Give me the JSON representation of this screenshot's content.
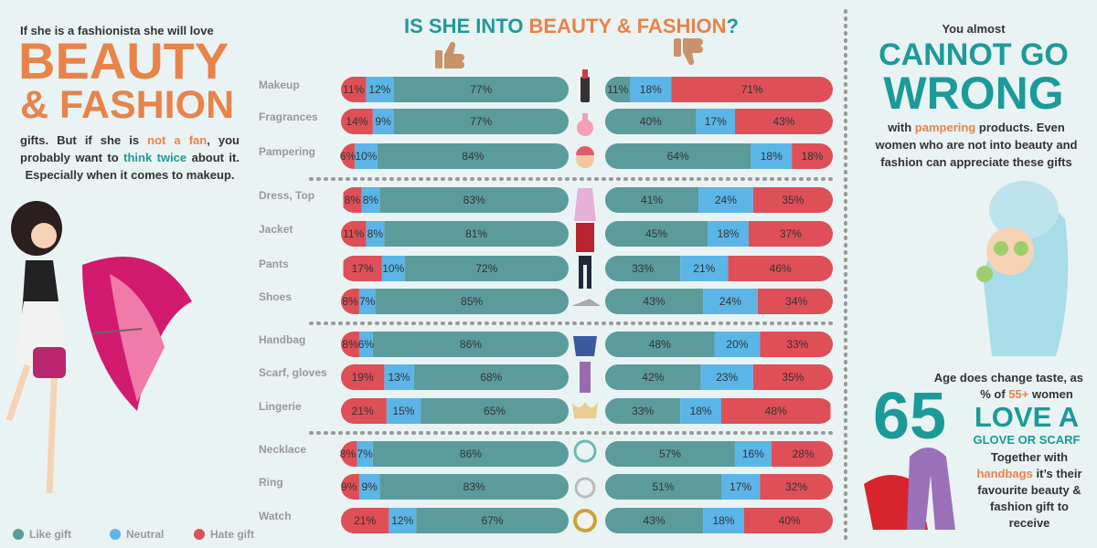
{
  "header": {
    "title": [
      "IS SHE INTO ",
      "BEAUTY & FASHION",
      "?"
    ]
  },
  "left_panel": {
    "intro": "If she is a fashionista she will love",
    "headline": [
      "BEAUTY",
      "& FASHION"
    ],
    "body": [
      "gifts. But if she is ",
      "not a fan",
      ", you probably want to ",
      "think twice",
      " about it. Especially when it comes to makeup."
    ]
  },
  "right_panel": {
    "lead": "You almost",
    "headline": [
      "CANNOT GO",
      "WRONG"
    ],
    "body": [
      "with ",
      "pampering",
      " products. Even women who are not into beauty and fashion can appreciate these gifts"
    ],
    "age_intro": "Age does change taste, as",
    "stat": 65,
    "stat_text": [
      "% of ",
      "55+",
      " women"
    ],
    "stat_headline": [
      "LOVE A",
      "GLOVE OR SCARF"
    ],
    "closing": [
      "Together with ",
      "handbags",
      " it’s their favourite beauty & fashion gift to receive"
    ]
  },
  "chart_data": [
    {
      "type": "bar",
      "orientation": "horizontal",
      "stacked": true,
      "direction": "rtl",
      "categories": [
        "Makeup",
        "Fragrances",
        "Pampering",
        "Dress, Top",
        "Jacket",
        "Pants",
        "Shoes",
        "Handbag",
        "Scarf, gloves",
        "Lingerie",
        "Necklace",
        "Ring",
        "Watch"
      ],
      "xlim": [
        0,
        100
      ],
      "legend": "bottom-left",
      "series": [
        {
          "name": "Like gift",
          "color": "#5b9b9c",
          "values": [
            77,
            77,
            84,
            83,
            81,
            72,
            85,
            86,
            68,
            65,
            86,
            83,
            67
          ],
          "value_labels": [
            "77%",
            "77%",
            "84%",
            "83%",
            "81%",
            "72%",
            "85%",
            "86%",
            "68%",
            "65%",
            "86%",
            "83%",
            "67%"
          ]
        },
        {
          "name": "Neutral",
          "color": "#5bb5e6",
          "values": [
            12,
            9,
            10,
            8,
            8,
            10,
            7,
            6,
            13,
            15,
            7,
            9,
            12
          ],
          "value_labels": [
            "12%",
            "9%",
            "10%",
            "8%",
            "8%",
            "10%",
            "7%",
            "6%",
            "13%",
            "15%",
            "7%",
            "9%",
            "12%"
          ]
        },
        {
          "name": "Hate gift",
          "color": "#de4f58",
          "values": [
            11,
            14,
            6,
            8,
            11,
            17,
            8,
            8,
            19,
            21,
            8,
            9,
            21
          ],
          "value_labels": [
            "11%",
            "14%",
            "6%",
            "8%",
            "11%",
            "17%",
            "8%",
            "8%",
            "19%",
            "21%",
            "8%",
            "9%",
            "21%"
          ]
        }
      ]
    },
    {
      "type": "bar",
      "orientation": "horizontal",
      "stacked": true,
      "direction": "ltr",
      "xlim": [
        0,
        100
      ],
      "series": [
        {
          "color": "#5b9b9c",
          "values": [
            11,
            40,
            64,
            41,
            45,
            33,
            43,
            48,
            42,
            33,
            57,
            51,
            43
          ],
          "value_labels": [
            "11%",
            "40%",
            "64%",
            "41%",
            "45%",
            "33%",
            "43%",
            "48%",
            "42%",
            "33%",
            "57%",
            "51%",
            "43%"
          ]
        },
        {
          "color": "#5bb5e6",
          "values": [
            18,
            17,
            18,
            24,
            18,
            21,
            24,
            20,
            23,
            18,
            16,
            17,
            18
          ],
          "value_labels": [
            "18%",
            "17%",
            "18%",
            "24%",
            "18%",
            "21%",
            "24%",
            "20%",
            "23%",
            "18%",
            "16%",
            "17%",
            "18%"
          ]
        },
        {
          "color": "#de4f58",
          "values": [
            71,
            43,
            18,
            35,
            37,
            46,
            34,
            33,
            35,
            48,
            28,
            32,
            40
          ],
          "value_labels": [
            "71%",
            "43%",
            "18%",
            "35%",
            "37%",
            "46%",
            "34%",
            "33%",
            "35%",
            "48%",
            "28%",
            "32%",
            "40%"
          ]
        }
      ]
    }
  ]
}
